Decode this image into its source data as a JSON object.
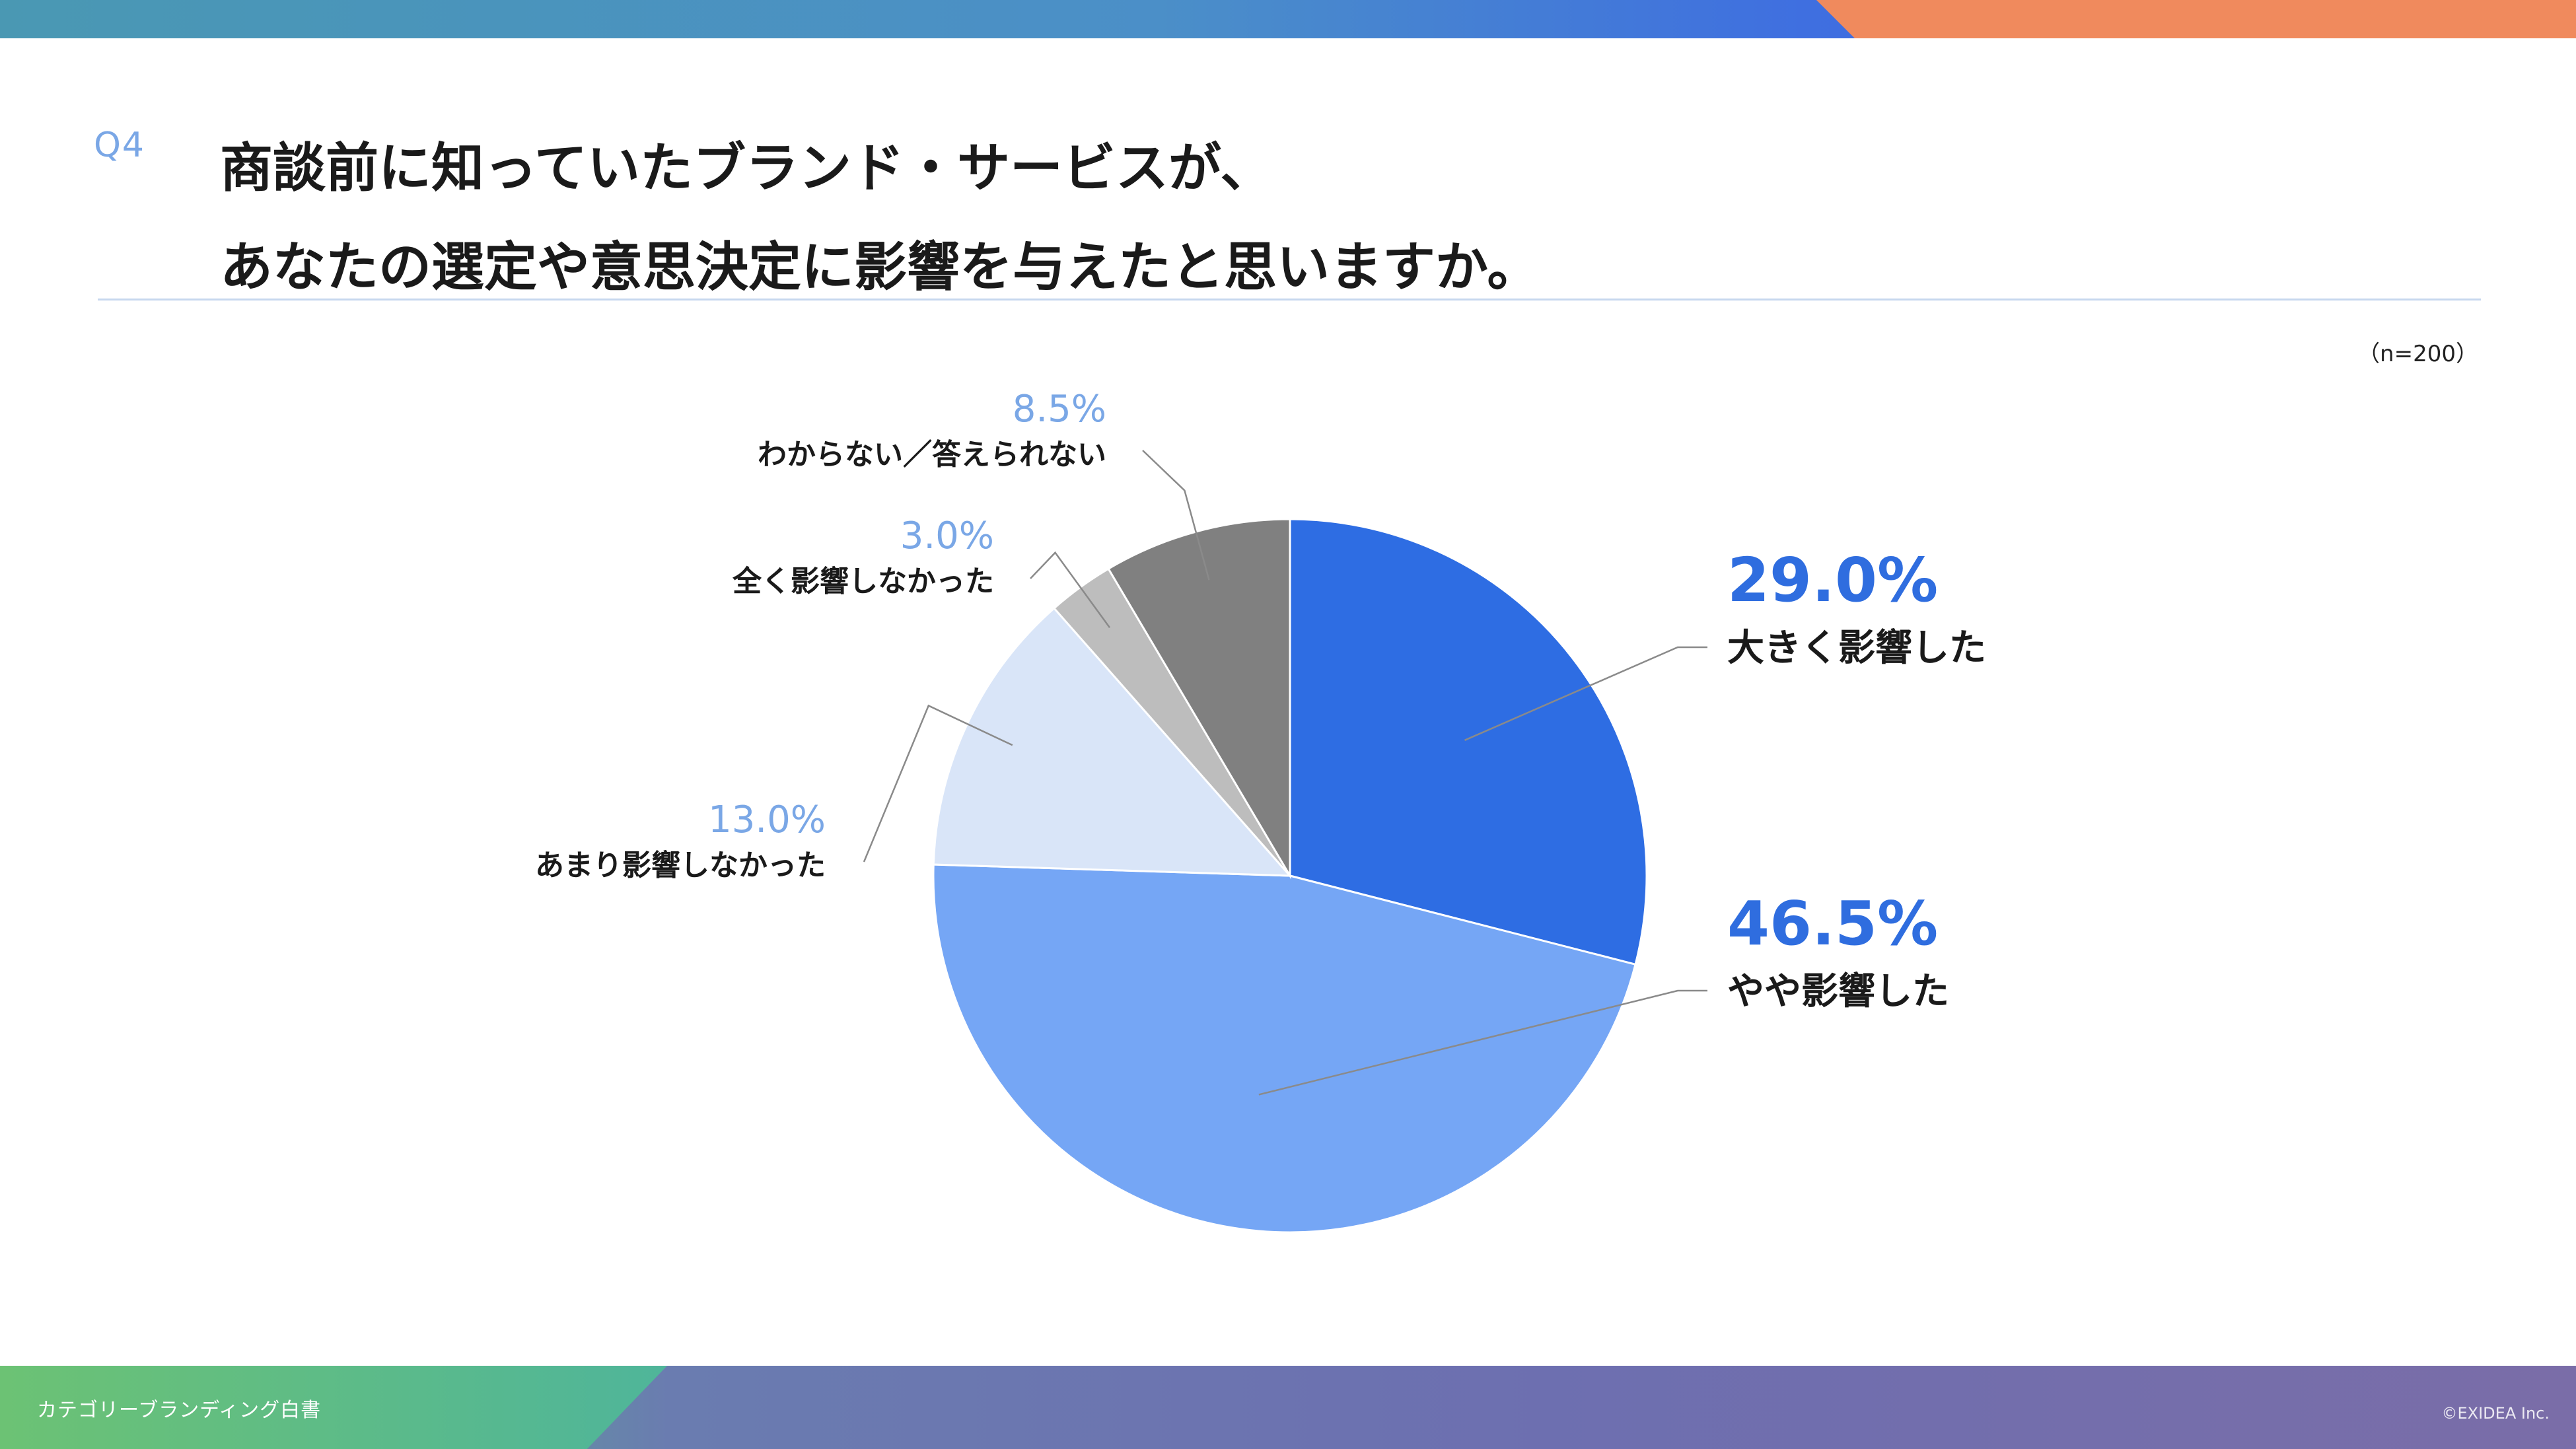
{
  "header": {
    "question_number": "Q4",
    "title_line1": "商談前に知っていたブランド・サービスが、",
    "title_line2": "あなたの選定や意思決定に影響を与えたと思いますか。",
    "sample_size": "（n=200）"
  },
  "footer": {
    "left_text": "カテゴリーブランディング白書",
    "right_text": "©EXIDEA Inc."
  },
  "colors": {
    "top_band": "#4b8fc8",
    "top_accent": "#f08a5d",
    "slice_1": "#2e6de3",
    "slice_2": "#75a6f5",
    "slice_3": "#d9e5f8",
    "slice_4": "#bdbdbd",
    "slice_5": "#808080",
    "label_strong": "#2f6ddf",
    "label_light": "#7aa7e6"
  },
  "chart_data": {
    "type": "pie",
    "start_angle": "12 o'clock, clockwise",
    "slices": [
      {
        "label": "大きく影響した",
        "value": 29.0,
        "display": "29.0%",
        "color": "#2e6de3",
        "emphasis": true
      },
      {
        "label": "やや影響した",
        "value": 46.5,
        "display": "46.5%",
        "color": "#75a6f5",
        "emphasis": true
      },
      {
        "label": "あまり影響しなかった",
        "value": 13.0,
        "display": "13.0%",
        "color": "#d9e5f8",
        "emphasis": false
      },
      {
        "label": "全く影響しなかった",
        "value": 3.0,
        "display": "3.0%",
        "color": "#bdbdbd",
        "emphasis": false
      },
      {
        "label": "わからない／答えられない",
        "value": 8.5,
        "display": "8.5%",
        "color": "#808080",
        "emphasis": false
      }
    ]
  }
}
